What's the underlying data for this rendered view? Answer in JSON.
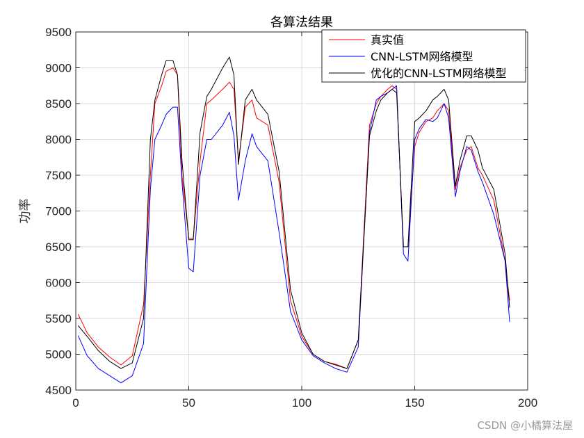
{
  "chart_data": {
    "type": "line",
    "title": "各算法结果",
    "xlabel": "",
    "ylabel": "功率",
    "xlim": [
      0,
      200
    ],
    "ylim": [
      4500,
      9500
    ],
    "xticks": [
      "0",
      "50",
      "100",
      "150",
      "200"
    ],
    "yticks": [
      "4500",
      "5000",
      "5500",
      "6000",
      "6500",
      "7000",
      "7500",
      "8000",
      "8500",
      "9000",
      "9500"
    ],
    "grid": true,
    "legend_position": "top-right",
    "x": [
      1,
      5,
      10,
      15,
      20,
      25,
      30,
      33,
      35,
      38,
      40,
      43,
      45,
      47,
      50,
      52,
      55,
      58,
      60,
      65,
      68,
      70,
      72,
      75,
      78,
      80,
      85,
      90,
      95,
      100,
      105,
      110,
      115,
      120,
      125,
      130,
      133,
      135,
      138,
      140,
      142,
      145,
      147,
      150,
      152,
      155,
      158,
      160,
      163,
      165,
      168,
      170,
      173,
      175,
      178,
      180,
      185,
      190,
      192
    ],
    "series": [
      {
        "name": "真实值",
        "color": "#ff0000",
        "values": [
          5560,
          5300,
          5100,
          4960,
          4850,
          4980,
          5700,
          7500,
          8500,
          8750,
          8950,
          9000,
          8900,
          7500,
          6620,
          6620,
          7700,
          8500,
          8550,
          8700,
          8800,
          8700,
          7700,
          8450,
          8550,
          8300,
          8200,
          7400,
          5750,
          5250,
          5000,
          4900,
          4860,
          4800,
          5200,
          8200,
          8500,
          8600,
          8700,
          8750,
          8700,
          6500,
          6500,
          7900,
          8100,
          8250,
          8300,
          8400,
          8500,
          8400,
          7300,
          7600,
          7850,
          7900,
          7600,
          7500,
          7150,
          6300,
          5750
        ]
      },
      {
        "name": "CNN-LSTM网络模型",
        "color": "#0000ff",
        "values": [
          5260,
          4980,
          4800,
          4700,
          4600,
          4700,
          5150,
          7300,
          8000,
          8200,
          8350,
          8450,
          8450,
          7400,
          6200,
          6150,
          7500,
          8000,
          8000,
          8200,
          8380,
          8050,
          7150,
          7700,
          8080,
          7900,
          7700,
          6700,
          5600,
          5200,
          4980,
          4880,
          4800,
          4750,
          5100,
          8100,
          8550,
          8600,
          8650,
          8700,
          8750,
          6400,
          6300,
          8000,
          8150,
          8280,
          8250,
          8300,
          8500,
          8300,
          7200,
          7550,
          7900,
          7850,
          7550,
          7400,
          6950,
          6300,
          5450
        ]
      },
      {
        "name": "优化的CNN-LSTM网络模型",
        "color": "#000000",
        "values": [
          5400,
          5250,
          5050,
          4900,
          4800,
          4880,
          5500,
          8000,
          8550,
          8900,
          9100,
          9100,
          8900,
          7700,
          6600,
          6600,
          8100,
          8600,
          8700,
          9000,
          9150,
          8900,
          7650,
          8550,
          8700,
          8550,
          8350,
          7550,
          5900,
          5300,
          5000,
          4900,
          4850,
          4800,
          5200,
          8050,
          8400,
          8550,
          8650,
          8700,
          8650,
          6500,
          6500,
          8250,
          8300,
          8400,
          8550,
          8600,
          8700,
          8550,
          7350,
          7700,
          8050,
          8050,
          7850,
          7600,
          7300,
          6400,
          5650
        ]
      }
    ]
  },
  "watermark": "CSDN @小橘算法屋"
}
